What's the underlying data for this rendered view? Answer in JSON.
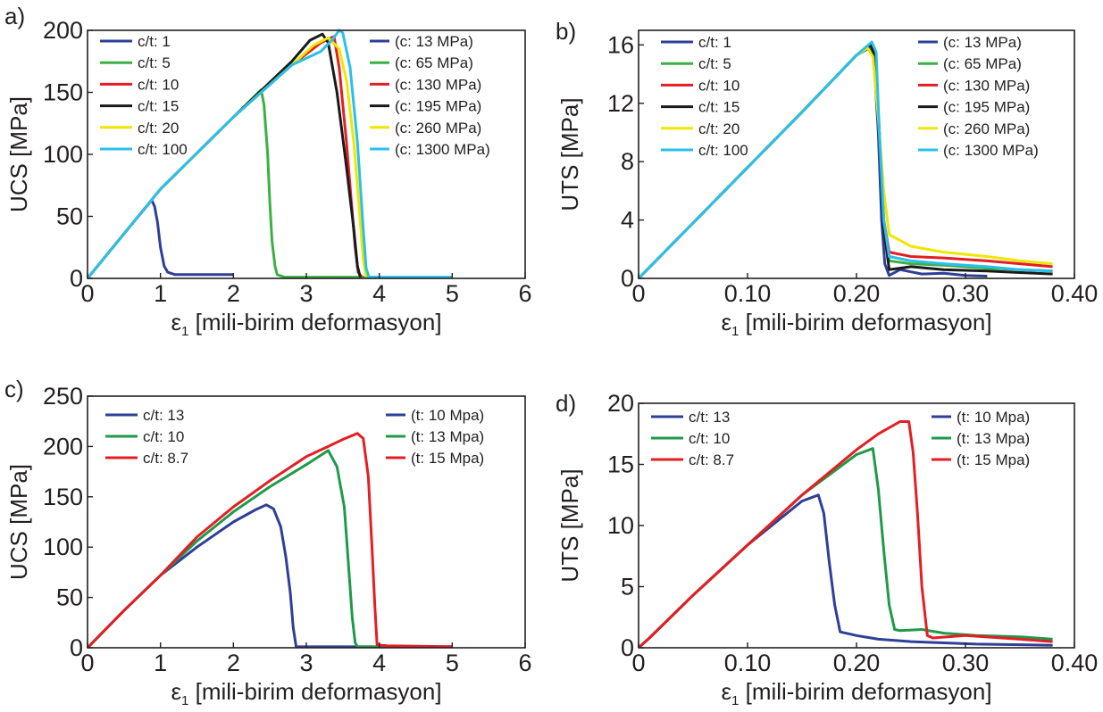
{
  "chart_data": [
    {
      "panel": "a)",
      "type": "line",
      "xlabel": "ε1 [mili-birim deformasyon]",
      "xlabel_main": "ε",
      "xlabel_sub": "1",
      "xlabel_rest": " [mili-birim deformasyon]",
      "ylabel": "UCS [MPa]",
      "xlim": [
        0,
        6
      ],
      "ylim": [
        0,
        200
      ],
      "xticks": [
        0,
        1,
        2,
        3,
        4,
        5,
        6
      ],
      "xtick_labels": [
        "0",
        "1",
        "2",
        "3",
        "4",
        "5",
        "6"
      ],
      "yticks": [
        0,
        50,
        100,
        150,
        200
      ],
      "ytick_labels": [
        "0",
        "50",
        "100",
        "150",
        "200"
      ],
      "grid": false,
      "legend_left": [
        "c/t: 1",
        "c/t: 5",
        "c/t: 10",
        "c/t: 15",
        "c/t: 20",
        "c/t: 100"
      ],
      "legend_right": [
        "(c: 13 MPa)",
        "(c: 65 MPa)",
        "(c: 130 MPa)",
        "(c: 195 MPa)",
        "(c: 260 MPa)",
        "(c: 1300 MPa)"
      ],
      "series": [
        {
          "name": "c/t: 1",
          "color": "#2e3f97",
          "x": [
            0,
            0.5,
            0.88,
            0.92,
            0.96,
            1.0,
            1.05,
            1.1,
            1.2,
            1.4,
            2.0
          ],
          "y": [
            0,
            36,
            63,
            58,
            45,
            25,
            10,
            5,
            3,
            3,
            3
          ]
        },
        {
          "name": "c/t: 5",
          "color": "#3cb043",
          "x": [
            0,
            1.0,
            2.0,
            2.38,
            2.42,
            2.47,
            2.5,
            2.53,
            2.57,
            2.6,
            2.7,
            3.0,
            4.0
          ],
          "y": [
            0,
            72,
            130,
            152,
            140,
            100,
            60,
            30,
            10,
            3,
            1,
            1,
            1
          ]
        },
        {
          "name": "c/t: 10",
          "color": "#e31e24",
          "x": [
            0,
            1.0,
            2.0,
            2.8,
            3.2,
            3.38,
            3.45,
            3.55,
            3.62,
            3.67,
            3.71,
            3.76
          ],
          "y": [
            0,
            72,
            130,
            172,
            190,
            195,
            170,
            110,
            60,
            25,
            5,
            1
          ]
        },
        {
          "name": "c/t: 15",
          "color": "#1a1a1a",
          "x": [
            0,
            1.0,
            2.0,
            2.8,
            3.05,
            3.22,
            3.3,
            3.42,
            3.55,
            3.65,
            3.7,
            3.74
          ],
          "y": [
            0,
            72,
            130,
            175,
            192,
            197,
            190,
            150,
            90,
            40,
            10,
            1
          ]
        },
        {
          "name": "c/t: 20",
          "color": "#f0e600",
          "x": [
            0,
            1.0,
            2.0,
            2.8,
            3.1,
            3.3,
            3.45,
            3.55,
            3.65,
            3.72,
            3.78,
            3.82
          ],
          "y": [
            0,
            72,
            130,
            172,
            188,
            194,
            185,
            160,
            110,
            60,
            15,
            1
          ]
        },
        {
          "name": "c/t: 100",
          "color": "#29c0ea",
          "x": [
            0,
            1.0,
            2.0,
            2.8,
            3.2,
            3.35,
            3.45,
            3.5,
            3.6,
            3.7,
            3.78,
            3.82,
            3.86,
            4.0,
            5.0
          ],
          "y": [
            0,
            72,
            130,
            172,
            183,
            192,
            200,
            198,
            170,
            110,
            40,
            8,
            1,
            1,
            1
          ]
        }
      ]
    },
    {
      "panel": "b)",
      "type": "line",
      "xlabel": "ε1 [mili-birim deformasyon]",
      "xlabel_main": "ε",
      "xlabel_sub": "1",
      "xlabel_rest": " [mili-birim deformasyon]",
      "ylabel": "UTS [MPa]",
      "xlim": [
        0,
        0.4
      ],
      "ylim": [
        0,
        17
      ],
      "xticks": [
        0,
        0.1,
        0.2,
        0.3,
        0.4
      ],
      "xtick_labels": [
        "0",
        "0.10",
        "0.20",
        "0.30",
        "0.40"
      ],
      "yticks": [
        0,
        4,
        8,
        12,
        16
      ],
      "ytick_labels": [
        "0",
        "4",
        "8",
        "12",
        "16"
      ],
      "grid": false,
      "legend_left": [
        "c/t: 1",
        "c/t: 5",
        "c/t: 10",
        "c/t: 15",
        "c/t: 20",
        "c/t: 100"
      ],
      "legend_right": [
        "(c: 13 MPa)",
        "(c: 65 MPa)",
        "(c: 130 MPa)",
        "(c: 195 MPa)",
        "(c: 260 MPa)",
        "(c: 1300 MPa)"
      ],
      "series": [
        {
          "name": "c/t: 1",
          "color": "#2e3f97",
          "x": [
            0,
            0.05,
            0.1,
            0.15,
            0.2,
            0.212,
            0.216,
            0.22,
            0.223,
            0.226,
            0.23,
            0.24,
            0.26,
            0.28,
            0.3,
            0.32
          ],
          "y": [
            0,
            3.8,
            7.6,
            11.4,
            15.3,
            15.8,
            15.0,
            10.0,
            4.0,
            1.0,
            0.2,
            0.6,
            0.3,
            0.35,
            0.2,
            0.15
          ]
        },
        {
          "name": "c/t: 5",
          "color": "#3cb043",
          "x": [
            0,
            0.05,
            0.1,
            0.15,
            0.2,
            0.213,
            0.217,
            0.221,
            0.225,
            0.23,
            0.25,
            0.28,
            0.32,
            0.35,
            0.38
          ],
          "y": [
            0,
            3.8,
            7.6,
            11.4,
            15.3,
            15.9,
            15.2,
            10.0,
            4.0,
            1.2,
            1.0,
            0.9,
            0.7,
            0.6,
            0.5
          ]
        },
        {
          "name": "c/t: 10",
          "color": "#e31e24",
          "x": [
            0,
            0.05,
            0.1,
            0.15,
            0.2,
            0.213,
            0.217,
            0.221,
            0.225,
            0.23,
            0.25,
            0.28,
            0.32,
            0.35,
            0.38
          ],
          "y": [
            0,
            3.8,
            7.6,
            11.4,
            15.3,
            16.0,
            15.4,
            10.0,
            4.0,
            1.8,
            1.5,
            1.4,
            1.2,
            1.0,
            0.8
          ]
        },
        {
          "name": "c/t: 15",
          "color": "#1a1a1a",
          "x": [
            0,
            0.05,
            0.1,
            0.15,
            0.2,
            0.213,
            0.217,
            0.221,
            0.225,
            0.23,
            0.25,
            0.28,
            0.32,
            0.35,
            0.38
          ],
          "y": [
            0,
            3.8,
            7.6,
            11.4,
            15.3,
            16.0,
            15.2,
            10.0,
            3.5,
            0.6,
            0.8,
            0.6,
            0.5,
            0.4,
            0.3
          ]
        },
        {
          "name": "c/t: 20",
          "color": "#f0e600",
          "x": [
            0,
            0.05,
            0.1,
            0.15,
            0.2,
            0.21,
            0.215,
            0.22,
            0.225,
            0.23,
            0.25,
            0.28,
            0.32,
            0.35,
            0.38
          ],
          "y": [
            0,
            3.8,
            7.6,
            11.4,
            15.3,
            15.8,
            15.2,
            11.0,
            6.0,
            3.0,
            2.2,
            1.8,
            1.5,
            1.2,
            1.0
          ]
        },
        {
          "name": "c/t: 100",
          "color": "#29c0ea",
          "x": [
            0,
            0.05,
            0.1,
            0.15,
            0.2,
            0.214,
            0.218,
            0.221,
            0.225,
            0.23,
            0.25,
            0.28,
            0.32,
            0.35,
            0.38
          ],
          "y": [
            0,
            3.8,
            7.6,
            11.4,
            15.3,
            16.2,
            15.5,
            10.0,
            4.0,
            1.5,
            1.2,
            1.0,
            0.8,
            0.6,
            0.5
          ]
        }
      ]
    },
    {
      "panel": "c)",
      "type": "line",
      "xlabel": "ε1 [mili-birim deformasyon]",
      "xlabel_main": "ε",
      "xlabel_sub": "1",
      "xlabel_rest": " [mili-birim deformasyon]",
      "ylabel": "UCS [MPa]",
      "xlim": [
        0,
        6
      ],
      "ylim": [
        0,
        250
      ],
      "xticks": [
        0,
        1,
        2,
        3,
        4,
        5,
        6
      ],
      "xtick_labels": [
        "0",
        "1",
        "2",
        "3",
        "4",
        "5",
        "6"
      ],
      "yticks": [
        0,
        50,
        100,
        150,
        200,
        250
      ],
      "ytick_labels": [
        "0",
        "50",
        "100",
        "150",
        "200",
        "250"
      ],
      "grid": false,
      "legend_left": [
        "c/t: 13",
        "c/t: 10",
        "c/t: 8.7"
      ],
      "legend_right": [
        "(t: 10 Mpa)",
        "(t: 13 Mpa)",
        "(t: 15 Mpa)"
      ],
      "series": [
        {
          "name": "c/t: 13",
          "color": "#2e3f97",
          "x": [
            0,
            0.5,
            1.0,
            1.5,
            2.0,
            2.3,
            2.45,
            2.55,
            2.65,
            2.72,
            2.78,
            2.82,
            2.86,
            3.0,
            4.0,
            5.0
          ],
          "y": [
            0,
            37,
            72,
            100,
            125,
            137,
            142,
            138,
            120,
            90,
            55,
            20,
            1,
            1,
            1,
            1
          ]
        },
        {
          "name": "c/t: 10",
          "color": "#1f9a48",
          "x": [
            0,
            0.5,
            1.0,
            1.5,
            2.0,
            2.5,
            3.0,
            3.3,
            3.42,
            3.52,
            3.58,
            3.63,
            3.67,
            3.7,
            4.0,
            5.0
          ],
          "y": [
            0,
            37,
            72,
            106,
            135,
            160,
            182,
            196,
            180,
            140,
            80,
            30,
            5,
            1,
            1,
            1
          ]
        },
        {
          "name": "c/t: 8.7",
          "color": "#e31e24",
          "x": [
            0,
            0.5,
            1.0,
            1.5,
            2.0,
            2.5,
            3.0,
            3.3,
            3.5,
            3.7,
            3.78,
            3.85,
            3.9,
            3.94,
            3.97,
            4.1,
            5.0
          ],
          "y": [
            0,
            37,
            72,
            110,
            140,
            166,
            190,
            200,
            207,
            213,
            208,
            170,
            100,
            40,
            3,
            2,
            1
          ]
        }
      ]
    },
    {
      "panel": "d)",
      "type": "line",
      "xlabel": "ε1 [mili-birim deformasyon]",
      "xlabel_main": "ε",
      "xlabel_sub": "1",
      "xlabel_rest": " [mili-birim deformasyon]",
      "ylabel": "UTS [MPa]",
      "xlim": [
        0,
        0.4
      ],
      "ylim": [
        0,
        20
      ],
      "xticks": [
        0,
        0.1,
        0.2,
        0.3,
        0.4
      ],
      "xtick_labels": [
        "0",
        "0.10",
        "0.20",
        "0.30",
        "0.40"
      ],
      "yticks": [
        0,
        5,
        10,
        15,
        20
      ],
      "ytick_labels": [
        "0",
        "5",
        "10",
        "15",
        "20"
      ],
      "grid": false,
      "legend_left": [
        "c/t: 13",
        "c/t: 10",
        "c/t: 8.7"
      ],
      "legend_right": [
        "(t: 10 Mpa)",
        "(t: 13 Mpa)",
        "(t: 15 Mpa)"
      ],
      "series": [
        {
          "name": "c/t: 13",
          "color": "#2e3f97",
          "x": [
            0,
            0.01,
            0.05,
            0.1,
            0.15,
            0.165,
            0.17,
            0.175,
            0.18,
            0.185,
            0.19,
            0.2,
            0.22,
            0.25,
            0.28,
            0.31,
            0.35,
            0.38
          ],
          "y": [
            0,
            0.8,
            4.3,
            8.4,
            12.0,
            12.5,
            11.0,
            7.0,
            3.5,
            1.3,
            1.2,
            1.0,
            0.7,
            0.5,
            0.4,
            0.3,
            0.25,
            0.2
          ]
        },
        {
          "name": "c/t: 10",
          "color": "#1f9a48",
          "x": [
            0,
            0.01,
            0.05,
            0.1,
            0.15,
            0.2,
            0.215,
            0.22,
            0.225,
            0.23,
            0.235,
            0.24,
            0.26,
            0.28,
            0.31,
            0.35,
            0.38
          ],
          "y": [
            0,
            0.8,
            4.3,
            8.4,
            12.5,
            15.8,
            16.3,
            13.0,
            8.0,
            3.5,
            1.5,
            1.4,
            1.5,
            1.2,
            1.0,
            0.9,
            0.7
          ]
        },
        {
          "name": "c/t: 8.7",
          "color": "#e31e24",
          "x": [
            0,
            0.01,
            0.05,
            0.1,
            0.15,
            0.2,
            0.22,
            0.24,
            0.248,
            0.252,
            0.256,
            0.26,
            0.265,
            0.27,
            0.3,
            0.35,
            0.38
          ],
          "y": [
            0,
            0.8,
            4.3,
            8.4,
            12.5,
            16.2,
            17.5,
            18.5,
            18.5,
            16.0,
            11.0,
            5.0,
            1.0,
            0.8,
            1.0,
            0.7,
            0.5
          ]
        }
      ]
    }
  ]
}
